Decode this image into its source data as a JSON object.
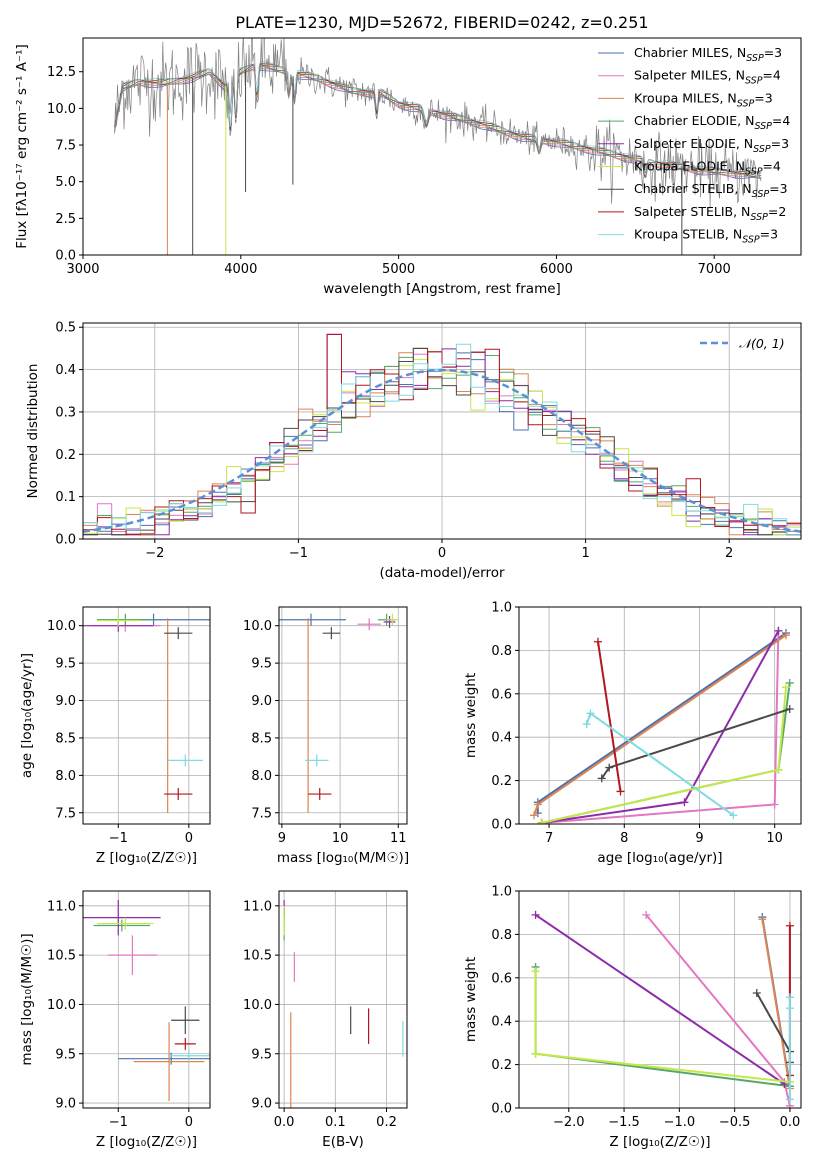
{
  "figure": {
    "title": "PLATE=1230, MJD=52672, FIBERID=0242, z=0.251"
  },
  "series_colors": {
    "Chabrier MILES": "#4c72b0",
    "Salpeter MILES": "#e377c2",
    "Kroupa MILES": "#dd8452",
    "Chabrier ELODIE": "#55a868",
    "Salpeter ELODIE": "#8e2ba8",
    "Kroupa ELODIE": "#c3e84a",
    "Chabrier STELIB": "#4a4a4a",
    "Salpeter STELIB": "#b0171f",
    "Kroupa STELIB": "#7fdbe0"
  },
  "chart_data": [
    {
      "id": "spectrum",
      "type": "line",
      "xlabel": "wavelength [Angstrom, rest frame]",
      "ylabel": "Flux [fλ10⁻¹⁷ erg cm⁻² s⁻¹ A⁻¹]",
      "xlim": [
        3000,
        7550
      ],
      "ylim": [
        0,
        14.8
      ],
      "xticks": [
        3000,
        4000,
        5000,
        6000,
        7000
      ],
      "yticks": [
        0.0,
        2.5,
        5.0,
        7.5,
        10.0,
        12.5
      ],
      "grid": false,
      "legend_position": "top-right",
      "legend": [
        {
          "label": "Chabrier MILES, N",
          "sub": "SSP",
          "suffix": "=3"
        },
        {
          "label": "Salpeter MILES, N",
          "sub": "SSP",
          "suffix": "=4"
        },
        {
          "label": "Kroupa MILES, N",
          "sub": "SSP",
          "suffix": "=3"
        },
        {
          "label": "Chabrier ELODIE, N",
          "sub": "SSP",
          "suffix": "=4"
        },
        {
          "label": "Salpeter ELODIE, N",
          "sub": "SSP",
          "suffix": "=3"
        },
        {
          "label": "Kroupa ELODIE, N",
          "sub": "SSP",
          "suffix": "=4"
        },
        {
          "label": "Chabrier STELIB, N",
          "sub": "SSP",
          "suffix": "=3"
        },
        {
          "label": "Salpeter STELIB, N",
          "sub": "SSP",
          "suffix": "=2"
        },
        {
          "label": "Kroupa STELIB, N",
          "sub": "SSP",
          "suffix": "=3"
        }
      ],
      "continuum": [
        [
          3200,
          8.7
        ],
        [
          3250,
          11.4
        ],
        [
          3350,
          11.8
        ],
        [
          3500,
          11.7
        ],
        [
          3700,
          12.1
        ],
        [
          3800,
          12.5
        ],
        [
          3900,
          11.5
        ],
        [
          4000,
          12.5
        ],
        [
          4100,
          13.0
        ],
        [
          4300,
          12.5
        ],
        [
          4500,
          12.0
        ],
        [
          4700,
          11.2
        ],
        [
          4900,
          11.0
        ],
        [
          5000,
          10.3
        ],
        [
          5200,
          9.8
        ],
        [
          5500,
          9.0
        ],
        [
          5800,
          8.0
        ],
        [
          6000,
          7.7
        ],
        [
          6300,
          7.0
        ],
        [
          6600,
          6.3
        ],
        [
          6900,
          5.8
        ],
        [
          7200,
          5.5
        ],
        [
          7300,
          5.4
        ]
      ],
      "absorption_drops": [
        {
          "x": 3535,
          "to": 0.0,
          "series": "Kroupa MILES"
        },
        {
          "x": 3695,
          "to": 0.0,
          "series": "Chabrier STELIB"
        },
        {
          "x": 3905,
          "to": 0.0,
          "series": "Kroupa ELODIE"
        },
        {
          "x": 4030,
          "to": 4.3,
          "series": "Chabrier STELIB"
        },
        {
          "x": 4330,
          "to": 4.8,
          "series": "Chabrier STELIB"
        },
        {
          "x": 6795,
          "to": 0.0,
          "series": "Chabrier STELIB"
        }
      ]
    },
    {
      "id": "residuals",
      "type": "histogram",
      "xlabel": "(data-model)/error",
      "ylabel": "Normed distribution",
      "xlim": [
        -2.5,
        2.5
      ],
      "ylim": [
        0,
        0.51
      ],
      "xticks": [
        -2,
        -1,
        0,
        1,
        2
      ],
      "yticks": [
        0.0,
        0.1,
        0.2,
        0.3,
        0.4,
        0.5
      ],
      "grid": true,
      "legend_position": "top-right",
      "legend": [
        {
          "label": "𝒩(0, 1)"
        }
      ],
      "reference_curve": {
        "type": "normal",
        "mean": 0,
        "sigma": 1,
        "color": "#5b8fd6",
        "dashed": true
      },
      "bin_edges_range": [
        -2.5,
        2.5
      ],
      "bin_width": 0.1,
      "peak_bins": [
        {
          "x": -0.75,
          "y": 0.483
        },
        {
          "x": 0.25,
          "y": 0.441
        },
        {
          "x": -0.05,
          "y": 0.442
        }
      ]
    },
    {
      "id": "z-age",
      "type": "scatter",
      "xlabel": "Z [log₁₀(Z/Z☉)]",
      "ylabel": "age  [log₁₀(age/yr)]",
      "xlim": [
        -1.5,
        0.3
      ],
      "ylim": [
        7.35,
        10.25
      ],
      "xticks": [
        -1,
        0
      ],
      "yticks": [
        7.5,
        8.0,
        8.5,
        9.0,
        9.5,
        10.0
      ],
      "grid": true,
      "points": [
        {
          "series": "Chabrier MILES",
          "x": -0.5,
          "y": 10.08,
          "xerr": 0.8
        },
        {
          "series": "Salpeter MILES",
          "x": -0.9,
          "y": 10.0,
          "xerr": 0.5
        },
        {
          "series": "Kroupa MILES",
          "x": -0.3,
          "y": 7.5,
          "yerr_up": 2.6
        },
        {
          "series": "Chabrier ELODIE",
          "x": -0.9,
          "y": 10.08,
          "xerr": 0.4
        },
        {
          "series": "Salpeter ELODIE",
          "x": -1.0,
          "y": 10.0,
          "xerr": 0.5
        },
        {
          "series": "Kroupa ELODIE",
          "x": -1.0,
          "y": 10.07,
          "xerr": 0.3
        },
        {
          "series": "Chabrier STELIB",
          "x": -0.15,
          "y": 9.9,
          "xerr": 0.2
        },
        {
          "series": "Salpeter STELIB",
          "x": -0.15,
          "y": 7.75,
          "xerr": 0.2
        },
        {
          "series": "Kroupa STELIB",
          "x": -0.05,
          "y": 8.2,
          "xerr": 0.25
        }
      ]
    },
    {
      "id": "mass-age",
      "type": "scatter",
      "xlabel": "mass [log₁₀(M/M☉)]",
      "ylabel": "",
      "xlim": [
        8.95,
        11.15
      ],
      "ylim": [
        7.35,
        10.25
      ],
      "xticks": [
        9,
        10,
        11
      ],
      "yticks": [
        7.5,
        8.0,
        8.5,
        9.0,
        9.5,
        10.0
      ],
      "grid": true,
      "points": [
        {
          "series": "Chabrier MILES",
          "x": 9.5,
          "y": 10.08,
          "xerr": 0.6
        },
        {
          "series": "Salpeter MILES",
          "x": 10.5,
          "y": 10.02,
          "xerr": 0.2
        },
        {
          "series": "Kroupa MILES",
          "x": 9.45,
          "y": 7.5,
          "yerr_up": 2.6
        },
        {
          "series": "Chabrier ELODIE",
          "x": 10.8,
          "y": 10.08,
          "xerr": 0.15
        },
        {
          "series": "Salpeter ELODIE",
          "x": 10.85,
          "y": 10.05,
          "xerr": 0.1
        },
        {
          "series": "Kroupa ELODIE",
          "x": 10.9,
          "y": 10.08,
          "xerr": 0.1
        },
        {
          "series": "Chabrier STELIB",
          "x": 9.85,
          "y": 9.9,
          "xerr": 0.15
        },
        {
          "series": "Salpeter STELIB",
          "x": 9.65,
          "y": 7.75,
          "xerr": 0.2
        },
        {
          "series": "Kroupa STELIB",
          "x": 9.6,
          "y": 8.2,
          "xerr": 0.2
        }
      ]
    },
    {
      "id": "age-weight",
      "type": "line",
      "xlabel": "age  [log₁₀(age/yr)]",
      "ylabel": "mass weight",
      "xlim": [
        6.6,
        10.35
      ],
      "ylim": [
        0,
        1.0
      ],
      "xticks": [
        7,
        8,
        9,
        10
      ],
      "yticks": [
        0.0,
        0.2,
        0.4,
        0.6,
        0.8,
        1.0
      ],
      "grid": true,
      "series": [
        {
          "name": "Chabrier MILES",
          "points": [
            [
              6.85,
              0.05
            ],
            [
              6.85,
              0.1
            ],
            [
              10.15,
              0.88
            ]
          ]
        },
        {
          "name": "Salpeter MILES",
          "points": [
            [
              6.9,
              0.005
            ],
            [
              10.0,
              0.09
            ],
            [
              10.05,
              0.89
            ]
          ]
        },
        {
          "name": "Kroupa MILES",
          "points": [
            [
              6.8,
              0.04
            ],
            [
              6.85,
              0.09
            ],
            [
              10.15,
              0.87
            ]
          ]
        },
        {
          "name": "Chabrier ELODIE",
          "points": [
            [
              6.9,
              0.005
            ],
            [
              10.05,
              0.25
            ],
            [
              10.2,
              0.65
            ]
          ]
        },
        {
          "name": "Salpeter ELODIE",
          "points": [
            [
              6.9,
              0.005
            ],
            [
              8.8,
              0.1
            ],
            [
              10.05,
              0.89
            ]
          ]
        },
        {
          "name": "Kroupa ELODIE",
          "points": [
            [
              6.9,
              0.005
            ],
            [
              10.05,
              0.25
            ],
            [
              10.15,
              0.63
            ]
          ]
        },
        {
          "name": "Chabrier STELIB",
          "points": [
            [
              7.7,
              0.21
            ],
            [
              7.8,
              0.26
            ],
            [
              10.2,
              0.53
            ]
          ]
        },
        {
          "name": "Salpeter STELIB",
          "points": [
            [
              7.65,
              0.84
            ],
            [
              7.95,
              0.15
            ]
          ]
        },
        {
          "name": "Kroupa STELIB",
          "points": [
            [
              7.5,
              0.46
            ],
            [
              7.55,
              0.51
            ],
            [
              9.45,
              0.04
            ]
          ]
        }
      ]
    },
    {
      "id": "z-mass",
      "type": "scatter",
      "xlabel": "Z [log₁₀(Z/Z☉)]",
      "ylabel": "mass [log₁₀(M/M☉)]",
      "xlim": [
        -1.5,
        0.3
      ],
      "ylim": [
        8.95,
        11.15
      ],
      "xticks": [
        -1,
        0
      ],
      "yticks": [
        9.0,
        9.5,
        10.0,
        10.5,
        11.0
      ],
      "grid": true,
      "points": [
        {
          "series": "Chabrier MILES",
          "x": -0.25,
          "y": 9.45,
          "xerr": 0.75
        },
        {
          "series": "Salpeter MILES",
          "x": -0.8,
          "y": 10.5,
          "xerr": 0.35,
          "yerr": 0.2
        },
        {
          "series": "Kroupa MILES",
          "x": -0.28,
          "y": 9.42,
          "xerr": 0.5,
          "yerr": 0.4
        },
        {
          "series": "Chabrier ELODIE",
          "x": -0.95,
          "y": 10.8,
          "xerr": 0.4
        },
        {
          "series": "Salpeter ELODIE",
          "x": -1.0,
          "y": 10.88,
          "xerr": 0.6,
          "yerr": 0.18
        },
        {
          "series": "Kroupa ELODIE",
          "x": -0.9,
          "y": 10.82,
          "xerr": 0.4
        },
        {
          "series": "Chabrier STELIB",
          "x": -0.05,
          "y": 9.84,
          "xerr": 0.2,
          "yerr": 0.14
        },
        {
          "series": "Salpeter STELIB",
          "x": -0.05,
          "y": 9.6,
          "xerr": 0.15
        },
        {
          "series": "Kroupa STELIB",
          "x": 0.0,
          "y": 9.48,
          "xerr": 0.3
        }
      ]
    },
    {
      "id": "ebv-mass",
      "type": "scatter",
      "xlabel": "E(B-V)",
      "ylabel": "",
      "xlim": [
        -0.01,
        0.24
      ],
      "ylim": [
        8.95,
        11.15
      ],
      "xticks": [
        0.0,
        0.1,
        0.2
      ],
      "yticks": [
        9.0,
        9.5,
        10.0,
        10.5,
        11.0
      ],
      "grid": true,
      "points": [
        {
          "series": "Chabrier MILES",
          "x": 0.0,
          "y": 10.9,
          "yerr": 0.1
        },
        {
          "series": "Salpeter MILES",
          "x": 0.02,
          "y": 10.38,
          "yerr": 0.15
        },
        {
          "series": "Kroupa MILES",
          "x": 0.013,
          "y": 9.42,
          "yerr": 0.5
        },
        {
          "series": "Chabrier ELODIE",
          "x": 0.0,
          "y": 10.8,
          "yerr": 0.15
        },
        {
          "series": "Salpeter ELODIE",
          "x": 0.0,
          "y": 10.98,
          "yerr": 0.08
        },
        {
          "series": "Kroupa ELODIE",
          "x": 0.0,
          "y": 10.85,
          "yerr": 0.15
        },
        {
          "series": "Chabrier STELIB",
          "x": 0.13,
          "y": 9.84,
          "yerr": 0.14
        },
        {
          "series": "Salpeter STELIB",
          "x": 0.165,
          "y": 9.78,
          "yerr": 0.18
        },
        {
          "series": "Kroupa STELIB",
          "x": 0.232,
          "y": 9.65,
          "yerr": 0.18
        }
      ]
    },
    {
      "id": "z-weight",
      "type": "line",
      "xlabel": "Z [log₁₀(Z/Z☉)]",
      "ylabel": "mass weight",
      "xlim": [
        -2.45,
        0.1
      ],
      "ylim": [
        0,
        1.0
      ],
      "xticks": [
        -2.0,
        -1.5,
        -1.0,
        -0.5,
        0.0
      ],
      "yticks": [
        0.0,
        0.2,
        0.4,
        0.6,
        0.8,
        1.0
      ],
      "grid": true,
      "series": [
        {
          "name": "Chabrier MILES",
          "points": [
            [
              -0.25,
              0.88
            ],
            [
              0.0,
              0.1
            ]
          ]
        },
        {
          "name": "Salpeter MILES",
          "points": [
            [
              -1.3,
              0.89
            ],
            [
              -0.05,
              0.12
            ],
            [
              0.0,
              0.01
            ]
          ]
        },
        {
          "name": "Kroupa MILES",
          "points": [
            [
              -0.25,
              0.87
            ],
            [
              0.0,
              0.09
            ]
          ]
        },
        {
          "name": "Chabrier ELODIE",
          "points": [
            [
              -2.3,
              0.65
            ],
            [
              -2.3,
              0.25
            ],
            [
              0.0,
              0.1
            ]
          ]
        },
        {
          "name": "Salpeter ELODIE",
          "points": [
            [
              -2.3,
              0.89
            ],
            [
              -0.05,
              0.11
            ]
          ]
        },
        {
          "name": "Kroupa ELODIE",
          "points": [
            [
              -2.3,
              0.63
            ],
            [
              -2.3,
              0.25
            ],
            [
              0.0,
              0.12
            ]
          ]
        },
        {
          "name": "Chabrier STELIB",
          "points": [
            [
              -0.3,
              0.53
            ],
            [
              0.0,
              0.26
            ],
            [
              0.0,
              0.21
            ]
          ]
        },
        {
          "name": "Salpeter STELIB",
          "points": [
            [
              0.0,
              0.84
            ],
            [
              0.0,
              0.15
            ]
          ]
        },
        {
          "name": "Kroupa STELIB",
          "points": [
            [
              0.0,
              0.51
            ],
            [
              0.0,
              0.46
            ],
            [
              0.0,
              0.04
            ]
          ]
        }
      ]
    }
  ]
}
